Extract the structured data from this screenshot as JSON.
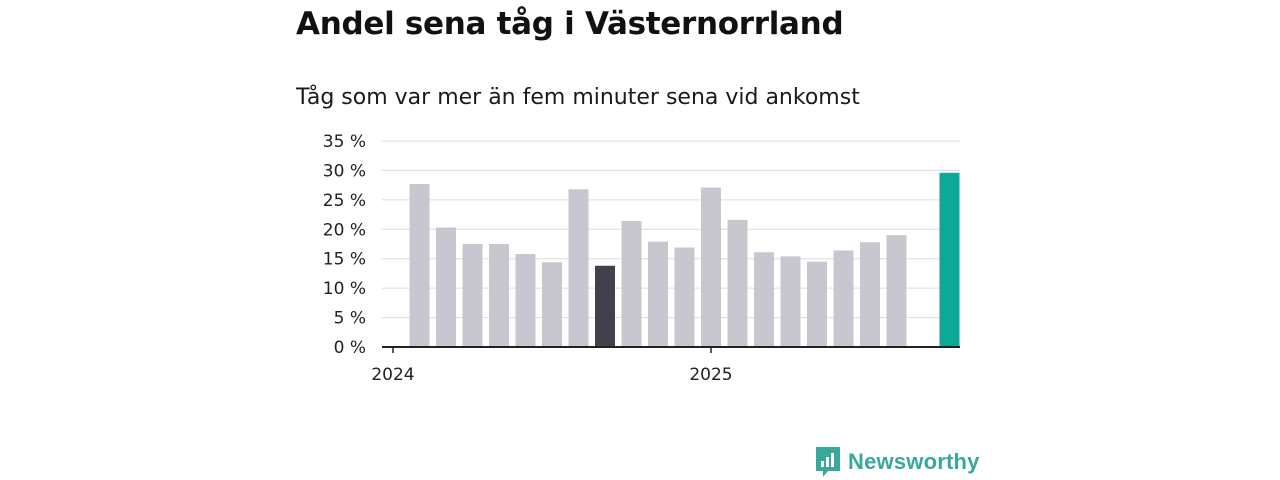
{
  "title": "Andel sena tåg i Västernorrland",
  "subtitle": "Tåg som var mer än fem minuter sena vid ankomst",
  "brand": {
    "name": "Newsworthy",
    "icon": "newsworthy-logo-icon"
  },
  "colors": {
    "bar_default": "#c8c7cf",
    "bar_highlight_dark": "#41404b",
    "bar_highlight_latest": "#0da898",
    "grid": "#dcdcdc",
    "axis": "#222222"
  },
  "chart_data": {
    "type": "bar",
    "title": "Andel sena tåg i Västernorrland",
    "subtitle": "Tåg som var mer än fem minuter sena vid ankomst",
    "xlabel": "",
    "ylabel": "",
    "ylim": [
      0,
      35
    ],
    "yticks": [
      0,
      5,
      10,
      15,
      20,
      25,
      30,
      35
    ],
    "ytick_labels": [
      "0 %",
      "5 %",
      "10 %",
      "15 %",
      "20 %",
      "25 %",
      "30 %",
      "35 %"
    ],
    "xtick_labels": [
      {
        "label": "2024",
        "at_category": "2024-01"
      },
      {
        "label": "2025",
        "at_category": "2025-01"
      }
    ],
    "grid": true,
    "categories": [
      "2024-02",
      "2024-03",
      "2024-04",
      "2024-05",
      "2024-06",
      "2024-07",
      "2024-08",
      "2024-09",
      "2024-10",
      "2024-11",
      "2024-12",
      "2025-01",
      "2025-02",
      "2025-03",
      "2025-04",
      "2025-05",
      "2025-06",
      "2025-07",
      "2025-08",
      "2025-09",
      "2025-10"
    ],
    "values": [
      27.7,
      20.3,
      17.5,
      17.5,
      15.8,
      14.4,
      26.8,
      13.8,
      21.4,
      17.9,
      16.9,
      27.1,
      21.6,
      16.1,
      15.4,
      14.5,
      16.4,
      17.8,
      19.0,
      null,
      29.6
    ],
    "highlights": {
      "2024-09": "bar_highlight_dark",
      "2025-10": "bar_highlight_latest"
    }
  }
}
